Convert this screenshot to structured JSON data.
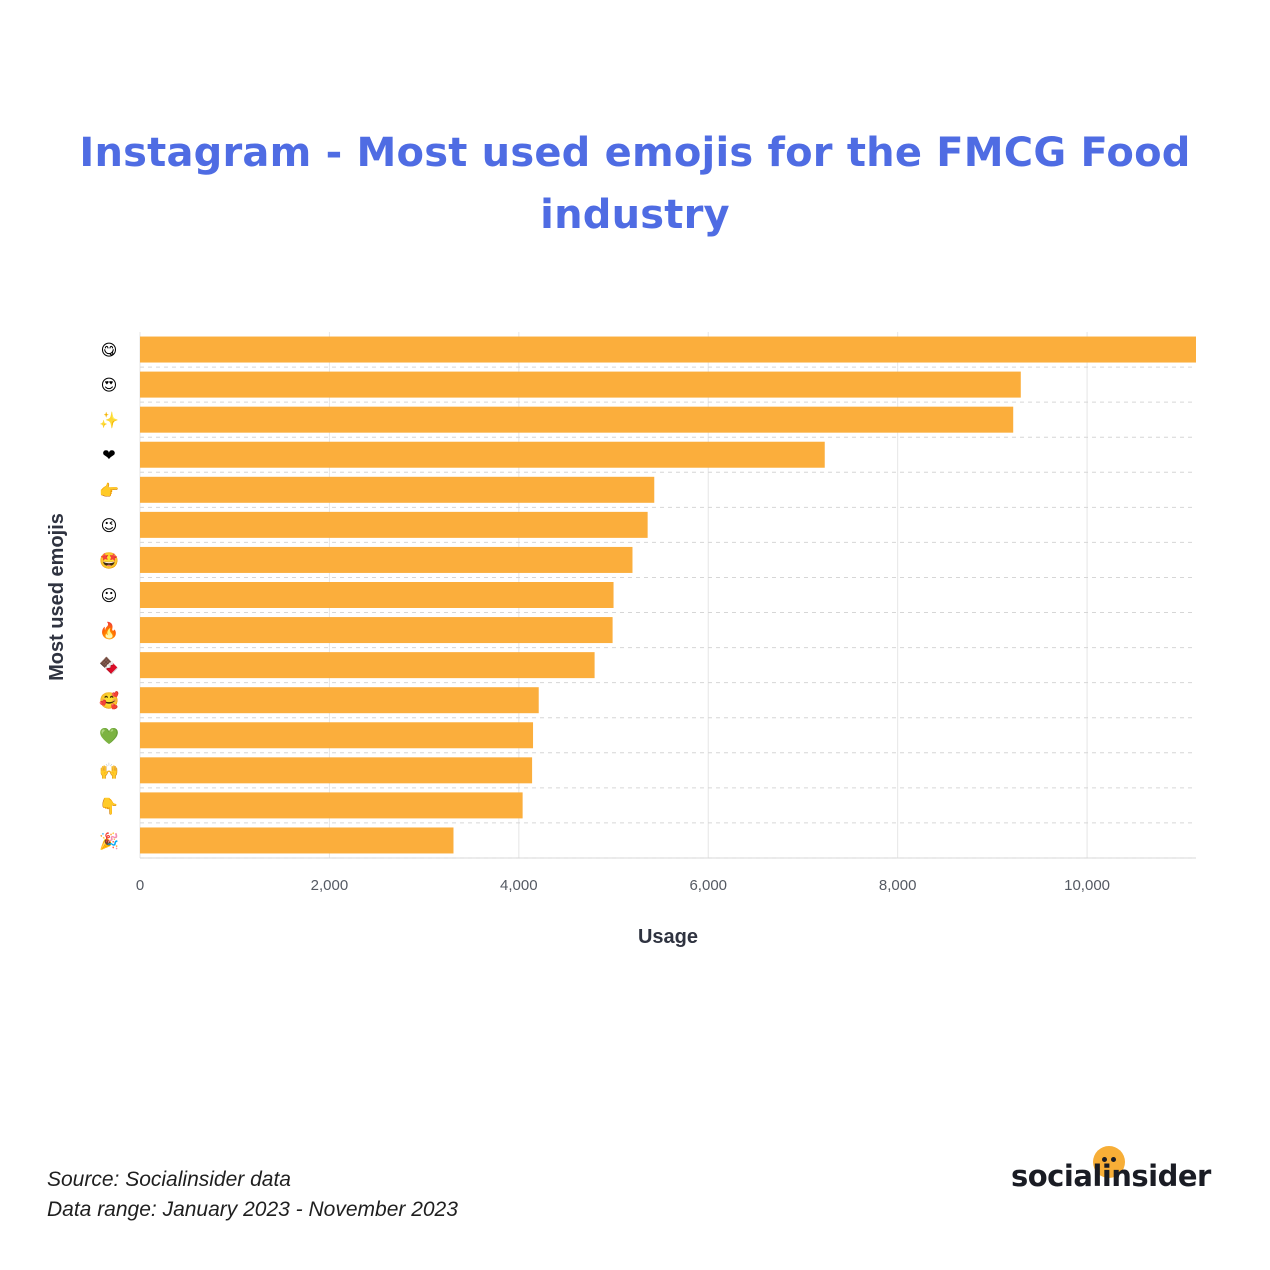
{
  "title": "Instagram - Most used emojis for the FMCG Food industry",
  "footer": {
    "source": "Source: Socialinsider data",
    "range": "Data range: January 2023 - November 2023"
  },
  "brand": {
    "name": "socialinsider",
    "accent": "#f7ae37"
  },
  "colors": {
    "bar": "#fbae3c",
    "title": "#4f6ce3"
  },
  "chart_data": {
    "type": "bar",
    "orientation": "horizontal",
    "categories": [
      "😋",
      "😍",
      "✨",
      "❤",
      "👉",
      "😉",
      "🤩",
      "☺",
      "🔥",
      "🍫",
      "🥰",
      "💚",
      "🙌",
      "👇",
      "🎉"
    ],
    "values": [
      11150,
      9300,
      9220,
      7230,
      5430,
      5360,
      5200,
      5000,
      4990,
      4800,
      4210,
      4150,
      4140,
      4040,
      3310
    ],
    "xlabel": "Usage",
    "ylabel": "Most used emojis",
    "xlim": [
      0,
      11150
    ],
    "xticks": [
      0,
      2000,
      4000,
      6000,
      8000,
      10000
    ],
    "xtick_labels": [
      "0",
      "2,000",
      "4,000",
      "6,000",
      "8,000",
      "10,000"
    ],
    "grid": true
  }
}
